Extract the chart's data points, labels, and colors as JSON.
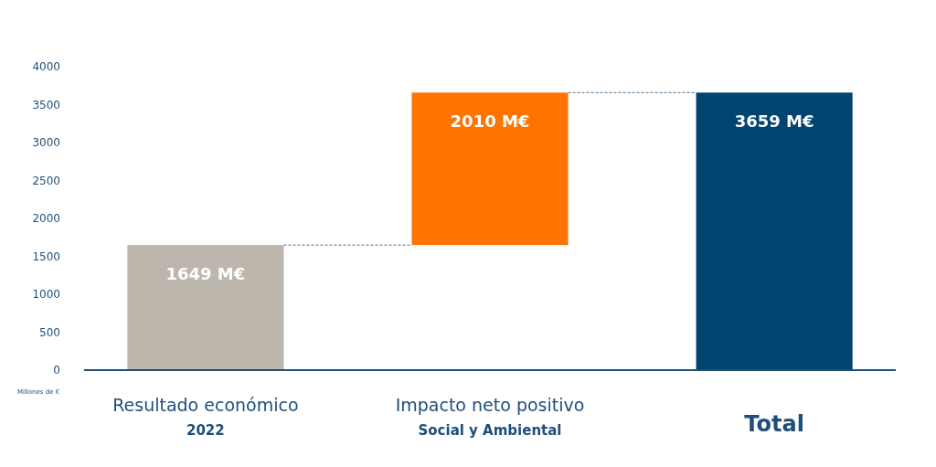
{
  "chart_data": {
    "type": "bar",
    "ylabel": "Millones de €",
    "categories": [
      "Resultado económico\n2022",
      "Impacto neto positivo\nSocial y Ambiental",
      "Total"
    ],
    "values": [
      1649,
      2010,
      3659
    ],
    "base": [
      0,
      1649,
      0
    ],
    "colors": [
      "#bdb6ad",
      "#ff7300",
      "#004470"
    ],
    "value_labels": [
      "1649 M€",
      "2010 M€",
      "3659 M€"
    ],
    "ylim": [
      0,
      4000
    ],
    "yticks": [
      0,
      500,
      1000,
      1500,
      2000,
      2500,
      3000,
      3500,
      4000
    ],
    "grid": false
  }
}
